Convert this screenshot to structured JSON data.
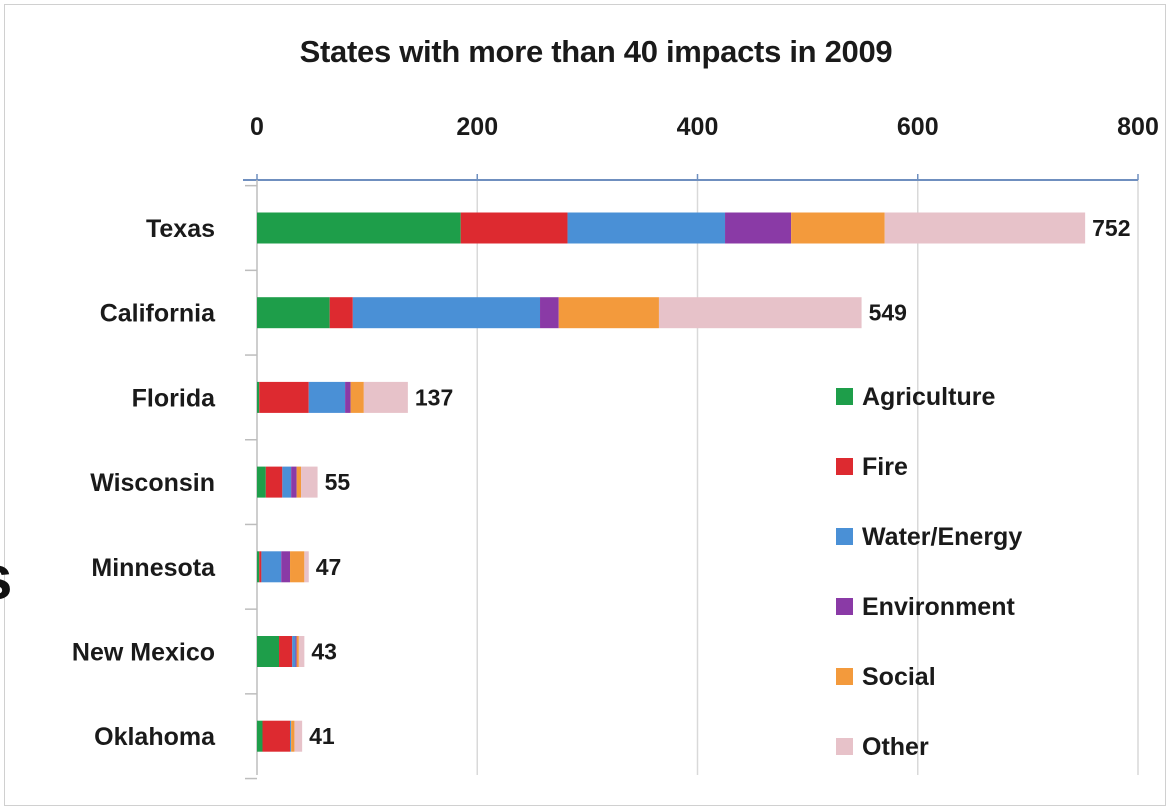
{
  "chart_data": {
    "type": "bar",
    "orientation": "horizontal",
    "stacked": true,
    "title": "States with more than 40 impacts in 2009",
    "xlim": [
      0,
      800
    ],
    "x_ticks": [
      "0",
      "200",
      "400",
      "600",
      "800"
    ],
    "x_axis_position": "top",
    "grid": true,
    "legend_position": "right",
    "categories": [
      "Texas",
      "California",
      "Florida",
      "Wisconsin",
      "Minnesota",
      "New Mexico",
      "Oklahoma"
    ],
    "totals": [
      752,
      549,
      137,
      55,
      47,
      43,
      41
    ],
    "series": [
      {
        "name": "Agriculture",
        "color": "#1e9e4a",
        "values": [
          185,
          66,
          2,
          8,
          2,
          20,
          5
        ]
      },
      {
        "name": "Fire",
        "color": "#dd2a30",
        "values": [
          97,
          21,
          45,
          15,
          2,
          12,
          25
        ]
      },
      {
        "name": "Water/Energy",
        "color": "#4a90d6",
        "values": [
          143,
          170,
          33,
          8,
          18,
          3,
          1
        ]
      },
      {
        "name": "Environment",
        "color": "#8a3aa6",
        "values": [
          60,
          17,
          5,
          5,
          8,
          1,
          0
        ]
      },
      {
        "name": "Social",
        "color": "#f39a3c",
        "values": [
          85,
          91,
          12,
          4,
          13,
          2,
          3
        ]
      },
      {
        "name": "Other",
        "color": "#e7c2c9",
        "values": [
          182,
          184,
          40,
          15,
          4,
          5,
          7
        ]
      }
    ]
  },
  "partial_text": "s"
}
